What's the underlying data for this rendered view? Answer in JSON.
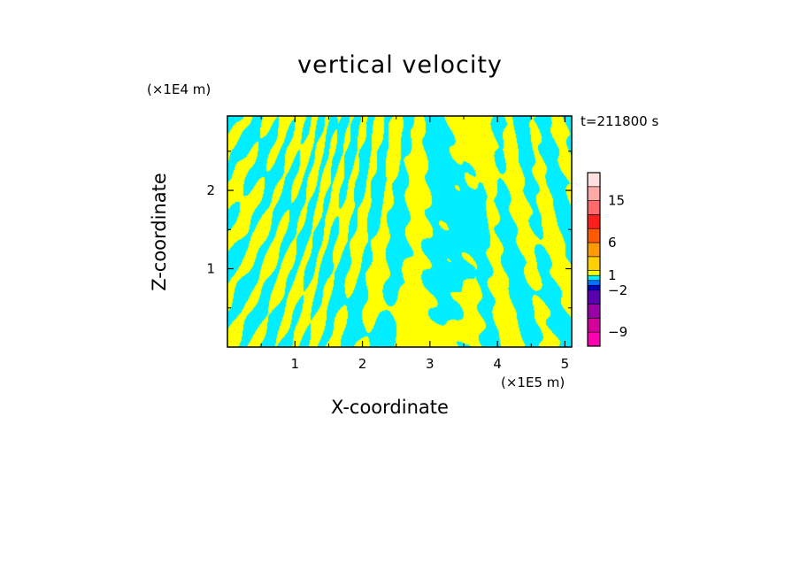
{
  "chart_data": {
    "type": "heatmap",
    "title": "vertical velocity",
    "xlabel": "X-coordinate",
    "ylabel": "Z-coordinate",
    "x_unit": "(×1E5 m)",
    "y_unit": "(×1E4 m)",
    "time_label": "t=211800 s",
    "xlim": [
      0,
      5.1
    ],
    "ylim": [
      0,
      2.95
    ],
    "x_ticks": [
      "1",
      "2",
      "3",
      "4",
      "5"
    ],
    "y_ticks": [
      "1",
      "2"
    ],
    "field_colors": {
      "positive": "#ffff00",
      "negative": "#00eeff"
    },
    "colorbar": {
      "levels": [
        -12,
        -9,
        -6,
        -4,
        -2,
        -1,
        0,
        1,
        2,
        4,
        6,
        9,
        12,
        15,
        18,
        21
      ],
      "colors": [
        "#ff00b0",
        "#d4009c",
        "#9a00a8",
        "#5a00b0",
        "#0000c8",
        "#0070ff",
        "#00eeff",
        "#ffff00",
        "#ffd000",
        "#ff9a00",
        "#ff5a00",
        "#ff1e1e",
        "#ff6a6a",
        "#ffa8a8",
        "#ffe0e0"
      ],
      "labels": [
        "15",
        "6",
        "1",
        "−2",
        "−9"
      ]
    }
  }
}
